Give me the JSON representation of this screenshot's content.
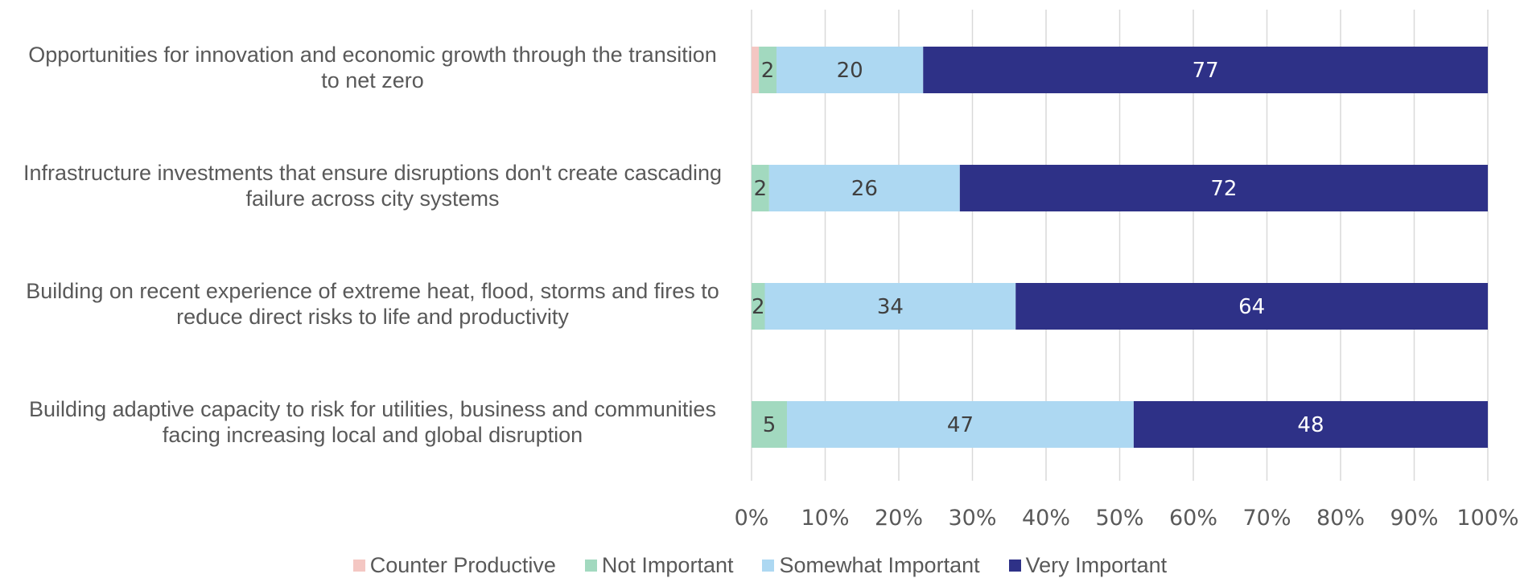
{
  "chart_data": {
    "type": "bar",
    "orientation": "horizontal",
    "stacked": "percent",
    "categories": [
      "Opportunities for innovation and economic growth through the transition to net zero",
      "Infrastructure investments that ensure disruptions don't create cascading failure across city systems",
      "Building on recent experience of extreme heat, flood, storms and fires to reduce direct risks to life and productivity",
      "Building adaptive capacity to risk for utilities, business and communities facing increasing local and global disruption"
    ],
    "category_lines": [
      [
        "Opportunities for innovation and economic growth through the transition",
        "to net zero"
      ],
      [
        "Infrastructure investments that ensure disruptions don't create cascading",
        "failure across city systems"
      ],
      [
        "Building on recent experience of extreme heat, flood, storms and fires to",
        "reduce direct risks to life and productivity"
      ],
      [
        "Building adaptive capacity to risk for utilities, business and communities",
        "facing increasing local and global disruption"
      ]
    ],
    "series": [
      {
        "name": "Counter Productive",
        "color": "#f4c7c3",
        "label_color": "#404040",
        "values": [
          1,
          0,
          0,
          0
        ],
        "labels": [
          "",
          "",
          "",
          ""
        ]
      },
      {
        "name": "Not Important",
        "color": "#a2d9bf",
        "label_color": "#404040",
        "values": [
          2.4,
          2.4,
          1.8,
          4.8
        ],
        "labels": [
          "2",
          "2",
          "2",
          "5"
        ]
      },
      {
        "name": "Somewhat Important",
        "color": "#add8f2",
        "label_color": "#404040",
        "values": [
          20,
          26,
          34,
          47
        ],
        "labels": [
          "20",
          "26",
          "34",
          "47"
        ]
      },
      {
        "name": "Very Important",
        "color": "#2e3187",
        "label_color": "#ffffff",
        "values": [
          77,
          72,
          64,
          48
        ],
        "labels": [
          "77",
          "72",
          "64",
          "48"
        ]
      }
    ],
    "xlim": [
      0,
      100
    ],
    "xticks": [
      "0%",
      "10%",
      "20%",
      "30%",
      "40%",
      "50%",
      "60%",
      "70%",
      "80%",
      "90%",
      "100%"
    ],
    "grid": "vertical",
    "legend": "bottom",
    "title": "",
    "xlabel": "",
    "ylabel": ""
  }
}
